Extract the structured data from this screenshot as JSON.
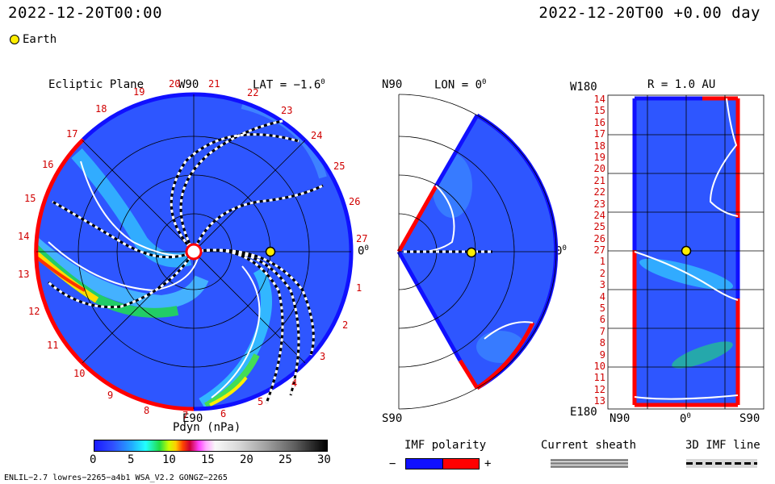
{
  "header": {
    "left_time": "2022-12-20T00:00",
    "right_time": "2022-12-20T00 +0.00 day",
    "legend_earth": "Earth"
  },
  "ecliptic": {
    "title": "Ecliptic Plane",
    "top_label": "W90",
    "lat_label": "LAT = −1.6",
    "right_label": "0",
    "bottom_label": "E90",
    "ring_numbers": [
      "19",
      "20",
      "21",
      "22",
      "23",
      "24",
      "25",
      "26",
      "27",
      "1",
      "2",
      "3",
      "4",
      "5",
      "6",
      "7",
      "8",
      "9",
      "10",
      "11",
      "12",
      "13",
      "14",
      "15",
      "16",
      "17",
      "18"
    ]
  },
  "meridional": {
    "top_left": "N90",
    "lon_label": "LON = 0",
    "right_label": "0",
    "bottom_left": "S90"
  },
  "radial": {
    "corner_top": "W180",
    "r_label": "R = 1.0 AU",
    "corner_bottom": "E180",
    "x_left": "N90",
    "x_mid": "0",
    "x_right": "S90",
    "y_labels": [
      "14",
      "15",
      "16",
      "17",
      "18",
      "19",
      "20",
      "21",
      "22",
      "23",
      "24",
      "25",
      "26",
      "27",
      "1",
      "2",
      "3",
      "4",
      "5",
      "6",
      "7",
      "8",
      "9",
      "10",
      "11",
      "12",
      "13"
    ]
  },
  "colorbar": {
    "title": "Pdyn (nPa)",
    "ticks": [
      "0",
      "5",
      "10",
      "15",
      "20",
      "25",
      "30"
    ],
    "range": [
      0,
      30
    ]
  },
  "legends": {
    "imf_title": "IMF polarity",
    "imf_minus": "−",
    "imf_plus": "+",
    "sheath_title": "Current sheath",
    "line_title": "3D IMF line"
  },
  "footer": {
    "left": "ENLIL−2.7 lowres−2265−a4b1 WSA_V2.2 GONGZ−2265"
  },
  "colors": {
    "field": "#2f5cff",
    "positive": "#ff0000",
    "negative": "#1010ff",
    "earth": "#ffee00"
  }
}
